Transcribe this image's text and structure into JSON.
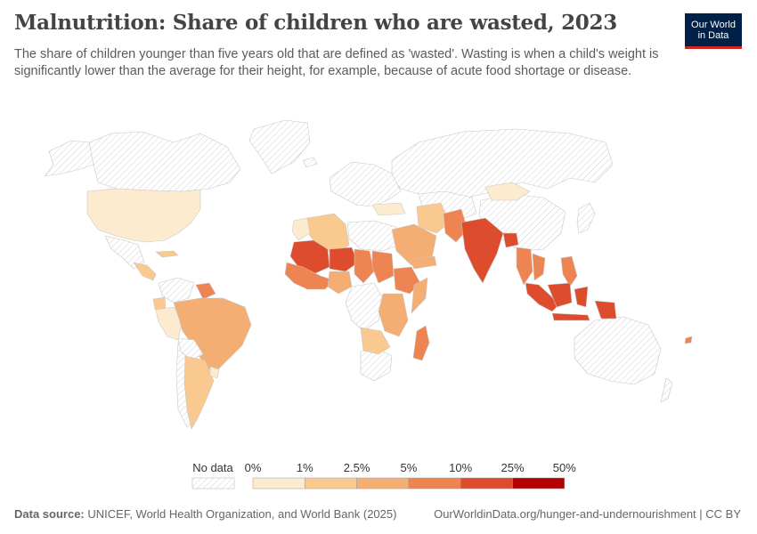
{
  "header": {
    "title": "Malnutrition: Share of children who are wasted, 2023",
    "subtitle": "The share of children younger than five years old that are defined as 'wasted'. Wasting is when a child's weight is significantly lower than the average for their height, for example, because of acute food shortage or disease.",
    "logo_line1": "Our World",
    "logo_line2": "in Data"
  },
  "legend": {
    "no_data_label": "No data",
    "ticks": [
      "0%",
      "1%",
      "2.5%",
      "5%",
      "10%",
      "25%",
      "50%"
    ],
    "colors": [
      "#fdebd0",
      "#f9c98f",
      "#f4ad72",
      "#ee8451",
      "#de4c2e",
      "#b30000"
    ]
  },
  "colors": {
    "no_data_fill": "#ffffff",
    "no_data_hatch": "#d8d8d8",
    "border": "#cccccc"
  },
  "footer": {
    "source_label": "Data source:",
    "source_text": "UNICEF, World Health Organization, and World Bank (2025)",
    "link_text": "OurWorldinData.org/hunger-and-undernourishment | CC BY"
  }
}
